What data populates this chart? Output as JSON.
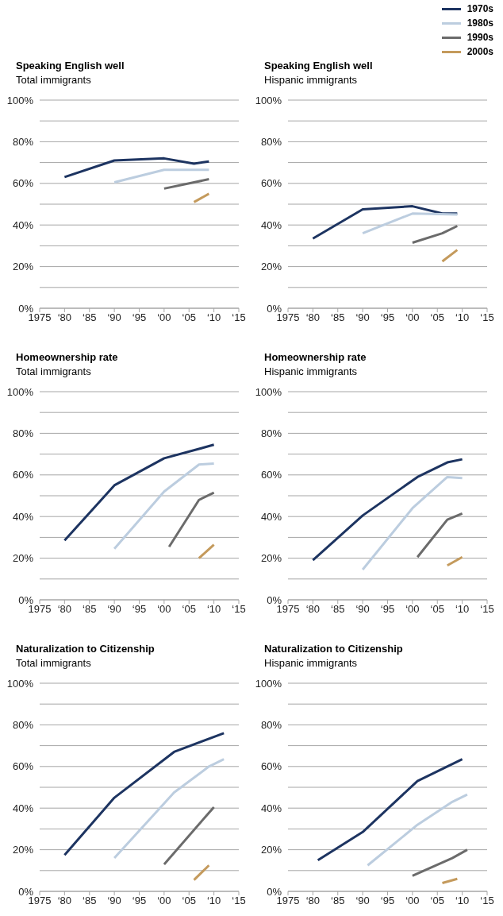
{
  "chart_data": [
    {
      "type": "line",
      "title": "Speaking English well",
      "subtitle": "Total immigrants",
      "xlim": [
        "1975",
        "2015"
      ],
      "ylim": [
        0,
        100
      ],
      "xticks": [
        {
          "value": "1975",
          "label": "1975"
        },
        {
          "value": "1980",
          "label": "‘80"
        },
        {
          "value": "1985",
          "label": "‘85"
        },
        {
          "value": "1990",
          "label": "‘90"
        },
        {
          "value": "1995",
          "label": "‘95"
        },
        {
          "value": "2000",
          "label": "‘00"
        },
        {
          "value": "2005",
          "label": "‘05"
        },
        {
          "value": "2010",
          "label": "‘10"
        },
        {
          "value": "2015",
          "label": "‘15"
        }
      ],
      "yticks": [
        {
          "value": 0,
          "label": "0%"
        },
        {
          "value": 10,
          "label": null
        },
        {
          "value": 20,
          "label": "20%"
        },
        {
          "value": 30,
          "label": null
        },
        {
          "value": 40,
          "label": "40%"
        },
        {
          "value": 50,
          "label": null
        },
        {
          "value": 60,
          "label": "60%"
        },
        {
          "value": 70,
          "label": null
        },
        {
          "value": 80,
          "label": "80%"
        },
        {
          "value": 90,
          "label": null
        },
        {
          "value": 100,
          "label": "100%"
        }
      ],
      "grid": "y",
      "series": [
        {
          "color": "#1d3461",
          "x": [
            "1980",
            "1990",
            "2000",
            "2006",
            "2009"
          ],
          "values": [
            63,
            71,
            72,
            69.5,
            70.5
          ]
        },
        {
          "color": "#bccddf",
          "x": [
            "1990",
            "2000",
            "2009"
          ],
          "values": [
            60.5,
            66.5,
            66.5
          ]
        },
        {
          "color": "#6b6b6b",
          "x": [
            "2000",
            "2009"
          ],
          "values": [
            57.5,
            62
          ]
        },
        {
          "color": "#c49a5c",
          "x": [
            "2006",
            "2009"
          ],
          "values": [
            51,
            55
          ]
        }
      ]
    },
    {
      "type": "line",
      "title": "Speaking English well",
      "subtitle": "Hispanic immigrants",
      "legend": "top right",
      "xlim": [
        "1975",
        "2015"
      ],
      "ylim": [
        0,
        100
      ],
      "xticks": [
        {
          "value": "1975",
          "label": "1975"
        },
        {
          "value": "1980",
          "label": "‘80"
        },
        {
          "value": "1985",
          "label": "‘85"
        },
        {
          "value": "1990",
          "label": "‘90"
        },
        {
          "value": "1995",
          "label": "‘95"
        },
        {
          "value": "2000",
          "label": "‘00"
        },
        {
          "value": "2005",
          "label": "‘05"
        },
        {
          "value": "2010",
          "label": "‘10"
        },
        {
          "value": "2015",
          "label": "‘15"
        }
      ],
      "yticks": [
        {
          "value": 0,
          "label": "0%"
        },
        {
          "value": 10,
          "label": null
        },
        {
          "value": 20,
          "label": "20%"
        },
        {
          "value": 30,
          "label": null
        },
        {
          "value": 40,
          "label": "40%"
        },
        {
          "value": 50,
          "label": null
        },
        {
          "value": 60,
          "label": "60%"
        },
        {
          "value": 70,
          "label": null
        },
        {
          "value": 80,
          "label": "80%"
        },
        {
          "value": 90,
          "label": null
        },
        {
          "value": 100,
          "label": "100%"
        }
      ],
      "grid": "y",
      "series": [
        {
          "name": "1970s",
          "color": "#1d3461",
          "x": [
            "1980",
            "1990",
            "2000",
            "2006",
            "2009"
          ],
          "values": [
            33.5,
            47.5,
            49,
            45.5,
            45.5
          ]
        },
        {
          "name": "1980s",
          "color": "#bccddf",
          "x": [
            "1990",
            "2000",
            "2009"
          ],
          "values": [
            36,
            45.5,
            45
          ]
        },
        {
          "name": "1990s",
          "color": "#6b6b6b",
          "x": [
            "2000",
            "2006",
            "2009"
          ],
          "values": [
            31.5,
            36,
            39.5
          ]
        },
        {
          "name": "2000s",
          "color": "#c49a5c",
          "x": [
            "2006",
            "2009"
          ],
          "values": [
            22.5,
            28
          ]
        }
      ]
    },
    {
      "type": "line",
      "title": "Homeownership rate",
      "subtitle": "Total immigrants",
      "xlim": [
        "1975",
        "2015"
      ],
      "ylim": [
        0,
        100
      ],
      "xticks": [
        {
          "value": "1975",
          "label": "1975"
        },
        {
          "value": "1980",
          "label": "‘80"
        },
        {
          "value": "1985",
          "label": "‘85"
        },
        {
          "value": "1990",
          "label": "‘90"
        },
        {
          "value": "1995",
          "label": "‘95"
        },
        {
          "value": "2000",
          "label": "‘00"
        },
        {
          "value": "2005",
          "label": "‘05"
        },
        {
          "value": "2010",
          "label": "‘10"
        },
        {
          "value": "2015",
          "label": "‘15"
        }
      ],
      "yticks": [
        {
          "value": 0,
          "label": "0%"
        },
        {
          "value": 10,
          "label": null
        },
        {
          "value": 20,
          "label": "20%"
        },
        {
          "value": 30,
          "label": null
        },
        {
          "value": 40,
          "label": "40%"
        },
        {
          "value": 50,
          "label": null
        },
        {
          "value": 60,
          "label": "60%"
        },
        {
          "value": 70,
          "label": null
        },
        {
          "value": 80,
          "label": "80%"
        },
        {
          "value": 90,
          "label": null
        },
        {
          "value": 100,
          "label": "100%"
        }
      ],
      "grid": "y",
      "series": [
        {
          "color": "#1d3461",
          "x": [
            "1980",
            "1990",
            "2000",
            "2007",
            "2010"
          ],
          "values": [
            28.5,
            55,
            68,
            72.5,
            74.5
          ]
        },
        {
          "color": "#bccddf",
          "x": [
            "1990",
            "2000",
            "2007",
            "2010"
          ],
          "values": [
            24.5,
            52,
            65,
            65.5
          ]
        },
        {
          "color": "#6b6b6b",
          "x": [
            "2001",
            "2007",
            "2010"
          ],
          "values": [
            25.5,
            48,
            51.5
          ]
        },
        {
          "color": "#c49a5c",
          "x": [
            "2007",
            "2010"
          ],
          "values": [
            20,
            26.5
          ]
        }
      ]
    },
    {
      "type": "line",
      "title": "Homeownership rate",
      "subtitle": "Hispanic immigrants",
      "xlim": [
        "1975",
        "2015"
      ],
      "ylim": [
        0,
        100
      ],
      "xticks": [
        {
          "value": "1975",
          "label": "1975"
        },
        {
          "value": "1980",
          "label": "‘80"
        },
        {
          "value": "1985",
          "label": "‘85"
        },
        {
          "value": "1990",
          "label": "‘90"
        },
        {
          "value": "1995",
          "label": "‘95"
        },
        {
          "value": "2000",
          "label": "‘00"
        },
        {
          "value": "2005",
          "label": "‘05"
        },
        {
          "value": "2010",
          "label": "‘10"
        },
        {
          "value": "2015",
          "label": "‘15"
        }
      ],
      "yticks": [
        {
          "value": 0,
          "label": "0%"
        },
        {
          "value": 10,
          "label": null
        },
        {
          "value": 20,
          "label": "20%"
        },
        {
          "value": 30,
          "label": null
        },
        {
          "value": 40,
          "label": "40%"
        },
        {
          "value": 50,
          "label": null
        },
        {
          "value": 60,
          "label": "60%"
        },
        {
          "value": 70,
          "label": null
        },
        {
          "value": 80,
          "label": "80%"
        },
        {
          "value": 90,
          "label": null
        },
        {
          "value": 100,
          "label": "100%"
        }
      ],
      "grid": "y",
      "series": [
        {
          "color": "#1d3461",
          "x": [
            "1980",
            "1990",
            "2001",
            "2007",
            "2010"
          ],
          "values": [
            19,
            40.5,
            59,
            66,
            67.5
          ]
        },
        {
          "color": "#bccddf",
          "x": [
            "1990",
            "2000",
            "2007",
            "2010"
          ],
          "values": [
            14.5,
            44,
            59,
            58.5
          ]
        },
        {
          "color": "#6b6b6b",
          "x": [
            "2001",
            "2007",
            "2010"
          ],
          "values": [
            20.5,
            38.5,
            41.5
          ]
        },
        {
          "color": "#c49a5c",
          "x": [
            "2007",
            "2010"
          ],
          "values": [
            16.5,
            20.5
          ]
        }
      ]
    },
    {
      "type": "line",
      "title": "Naturalization to Citizenship",
      "subtitle": "Total immigrants",
      "xlim": [
        "1975",
        "2015"
      ],
      "ylim": [
        0,
        100
      ],
      "xticks": [
        {
          "value": "1975",
          "label": "1975"
        },
        {
          "value": "1980",
          "label": "‘80"
        },
        {
          "value": "1985",
          "label": "‘85"
        },
        {
          "value": "1990",
          "label": "‘90"
        },
        {
          "value": "1995",
          "label": "‘95"
        },
        {
          "value": "2000",
          "label": "‘00"
        },
        {
          "value": "2005",
          "label": "‘05"
        },
        {
          "value": "2010",
          "label": "‘10"
        },
        {
          "value": "2015",
          "label": "‘15"
        }
      ],
      "yticks": [
        {
          "value": 0,
          "label": "0%"
        },
        {
          "value": 10,
          "label": null
        },
        {
          "value": 20,
          "label": "20%"
        },
        {
          "value": 30,
          "label": null
        },
        {
          "value": 40,
          "label": "40%"
        },
        {
          "value": 50,
          "label": null
        },
        {
          "value": 60,
          "label": "60%"
        },
        {
          "value": 70,
          "label": null
        },
        {
          "value": 80,
          "label": "80%"
        },
        {
          "value": 90,
          "label": null
        },
        {
          "value": 100,
          "label": "100%"
        }
      ],
      "grid": "y",
      "series": [
        {
          "color": "#1d3461",
          "x": [
            "1980",
            "1990",
            "2002",
            "2012"
          ],
          "values": [
            17.5,
            45,
            67,
            76
          ]
        },
        {
          "color": "#bccddf",
          "x": [
            "1990",
            "2002",
            "2009",
            "2012"
          ],
          "values": [
            16,
            47.5,
            60,
            63.5
          ]
        },
        {
          "color": "#6b6b6b",
          "x": [
            "2000",
            "2010"
          ],
          "values": [
            13,
            40.5
          ]
        },
        {
          "color": "#c49a5c",
          "x": [
            "2006",
            "2009"
          ],
          "values": [
            5.5,
            12.5
          ]
        }
      ]
    },
    {
      "type": "line",
      "title": "Naturalization to Citizenship",
      "subtitle": "Hispanic immigrants",
      "xlim": [
        "1975",
        "2015"
      ],
      "ylim": [
        0,
        100
      ],
      "xticks": [
        {
          "value": "1975",
          "label": "1975"
        },
        {
          "value": "1980",
          "label": "‘80"
        },
        {
          "value": "1985",
          "label": "‘85"
        },
        {
          "value": "1990",
          "label": "‘90"
        },
        {
          "value": "1995",
          "label": "‘95"
        },
        {
          "value": "2000",
          "label": "‘00"
        },
        {
          "value": "2005",
          "label": "‘05"
        },
        {
          "value": "2010",
          "label": "‘10"
        },
        {
          "value": "2015",
          "label": "‘15"
        }
      ],
      "yticks": [
        {
          "value": 0,
          "label": "0%"
        },
        {
          "value": 10,
          "label": null
        },
        {
          "value": 20,
          "label": "20%"
        },
        {
          "value": 30,
          "label": null
        },
        {
          "value": 40,
          "label": "40%"
        },
        {
          "value": 50,
          "label": null
        },
        {
          "value": 60,
          "label": "60%"
        },
        {
          "value": 70,
          "label": null
        },
        {
          "value": 80,
          "label": "80%"
        },
        {
          "value": 90,
          "label": null
        },
        {
          "value": 100,
          "label": "100%"
        }
      ],
      "grid": "y",
      "series": [
        {
          "color": "#1d3461",
          "x": [
            "1981",
            "1990",
            "2001",
            "2010"
          ],
          "values": [
            15,
            28.5,
            53,
            63.5
          ]
        },
        {
          "color": "#bccddf",
          "x": [
            "1991",
            "2001",
            "2008",
            "2011"
          ],
          "values": [
            12.5,
            32,
            43,
            46.5
          ]
        },
        {
          "color": "#6b6b6b",
          "x": [
            "2000",
            "2008",
            "2011"
          ],
          "values": [
            7.5,
            16,
            20
          ]
        },
        {
          "color": "#c49a5c",
          "x": [
            "2006",
            "2009"
          ],
          "values": [
            4,
            6
          ]
        }
      ]
    }
  ]
}
